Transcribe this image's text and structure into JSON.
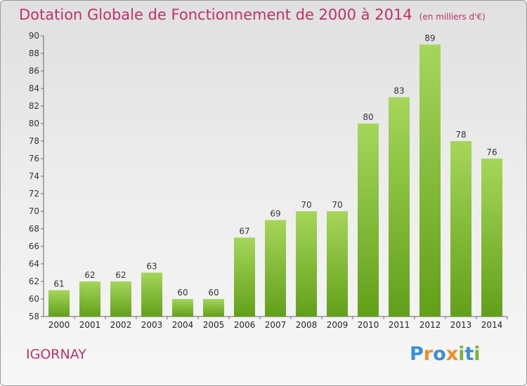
{
  "title": "Dotation Globale de Fonctionnement de 2000 à 2014",
  "unit": "(en milliers d'€)",
  "commune": "IGORNAY",
  "logo": {
    "text": "Proxiti",
    "colors": [
      "#3a8fd9",
      "#f28c28",
      "#3a8fd9",
      "#f28c28",
      "#7ab23a",
      "#3a8fd9",
      "#7ab23a"
    ]
  },
  "colors": {
    "title": "#c0306a",
    "bar_top": "#a5d65a",
    "bar_bottom": "#62a019"
  },
  "chart_data": {
    "type": "bar",
    "categories": [
      "2000",
      "2001",
      "2002",
      "2003",
      "2004",
      "2005",
      "2006",
      "2007",
      "2008",
      "2009",
      "2010",
      "2011",
      "2012",
      "2013",
      "2014"
    ],
    "values": [
      61,
      62,
      62,
      63,
      60,
      60,
      67,
      69,
      70,
      70,
      80,
      83,
      89,
      78,
      76
    ],
    "ylim": [
      58,
      90
    ],
    "yticks": [
      58,
      60,
      62,
      64,
      66,
      68,
      70,
      72,
      74,
      76,
      78,
      80,
      82,
      84,
      86,
      88,
      90
    ],
    "grid": false
  }
}
